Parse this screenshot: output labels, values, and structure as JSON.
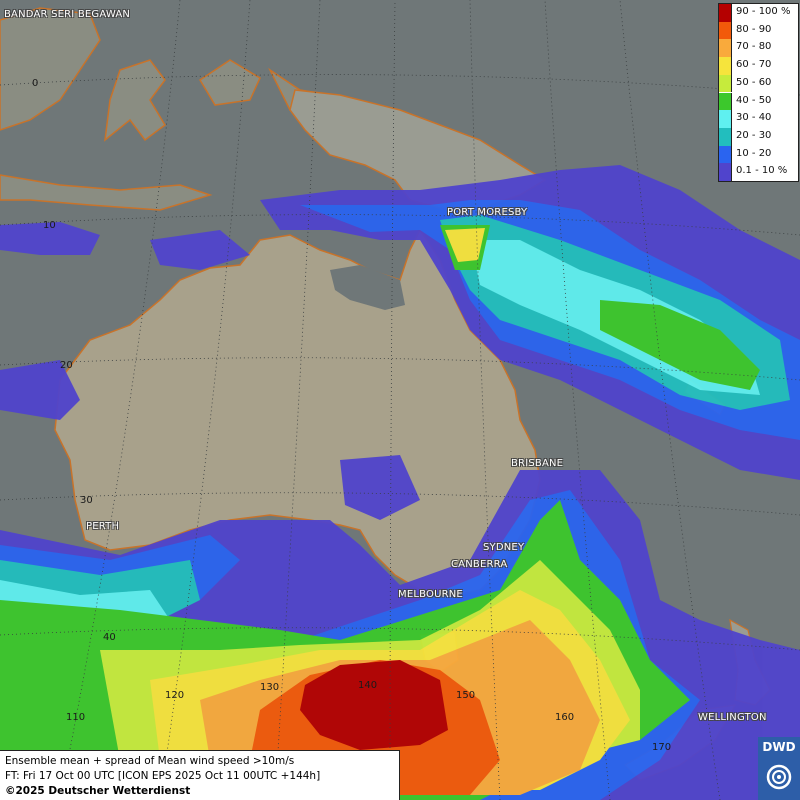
{
  "legend": {
    "items": [
      {
        "label": "90 - 100 %",
        "color": "#b40000"
      },
      {
        "label": "80 - 90",
        "color": "#f25a0a"
      },
      {
        "label": "70 - 80",
        "color": "#f9aa3c"
      },
      {
        "label": "60 - 70",
        "color": "#f6e43c"
      },
      {
        "label": "50 - 60",
        "color": "#c6eb3c"
      },
      {
        "label": "40 - 50",
        "color": "#3cc82c"
      },
      {
        "label": "30 - 40",
        "color": "#5ff0f0"
      },
      {
        "label": "20 - 30",
        "color": "#22bebe"
      },
      {
        "label": "10 - 20",
        "color": "#2a64f0"
      },
      {
        "label": "0.1 - 10 %",
        "color": "#5044cc"
      }
    ]
  },
  "cities": {
    "bandar": "BANDAR SERI BEGAWAN",
    "port_moresby": "PORT MORESBY",
    "brisbane": "BRISBANE",
    "perth": "PERTH",
    "sydney": "SYDNEY",
    "canberra": "CANBERRA",
    "melbourne": "MELBOURNE",
    "wellington": "WELLINGTON"
  },
  "grid_labels": {
    "lat_0": "0",
    "lat_10": "10",
    "lat_20": "20",
    "lat_30": "30",
    "lat_40": "40",
    "lon_110": "110",
    "lon_120": "120",
    "lon_130": "130",
    "lon_140": "140",
    "lon_150": "150",
    "lon_160": "160",
    "lon_170": "170"
  },
  "info": {
    "line1": "Ensemble mean + spread of Mean wind speed >10m/s",
    "line2": "FT: Fri 17 Oct 00 UTC [ICON EPS 2025 Oct 11 00UTC +144h]",
    "line3": "©2025 Deutscher Wetterdienst"
  },
  "logo": {
    "text": "DWD"
  }
}
